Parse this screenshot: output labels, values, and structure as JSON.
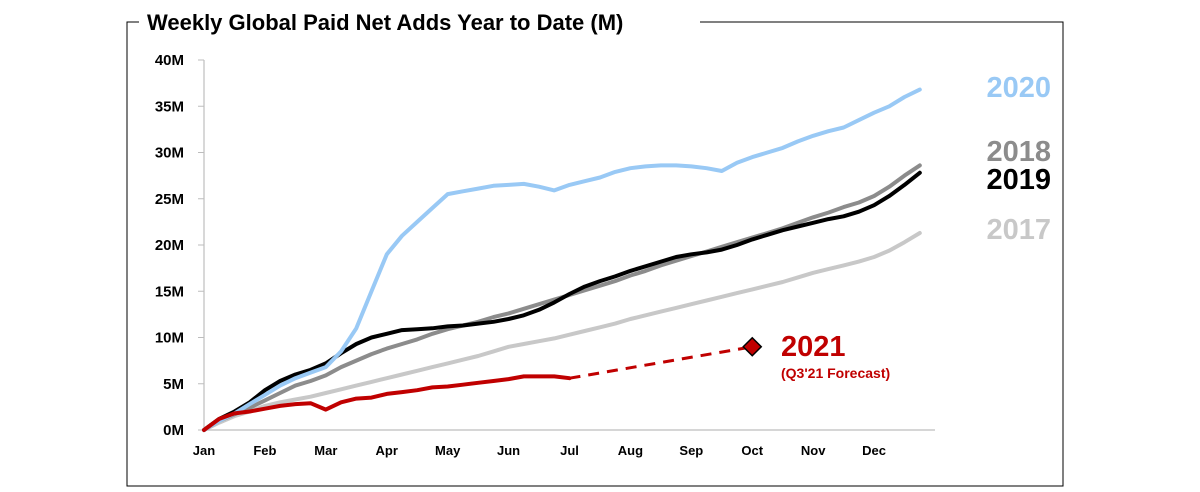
{
  "chart_data": {
    "type": "line",
    "title": "Weekly Global Paid Net Adds Year to Date (M)",
    "xlabel": "",
    "ylabel": "",
    "x_ticks": [
      "Jan",
      "Feb",
      "Mar",
      "Apr",
      "May",
      "Jun",
      "Jul",
      "Aug",
      "Sep",
      "Oct",
      "Nov",
      "Dec"
    ],
    "y_ticks": [
      "0M",
      "5M",
      "10M",
      "15M",
      "20M",
      "25M",
      "30M",
      "35M",
      "40M"
    ],
    "xlim": [
      0,
      12
    ],
    "ylim": [
      0,
      40
    ],
    "grid": false,
    "legend": "inline labels at line ends",
    "series": [
      {
        "name": "2017",
        "color": "#c8c8c8",
        "x": [
          0,
          0.25,
          0.5,
          0.75,
          1,
          1.25,
          1.5,
          1.75,
          2,
          2.25,
          2.5,
          2.75,
          3,
          3.25,
          3.5,
          3.75,
          4,
          4.25,
          4.5,
          4.75,
          5,
          5.25,
          5.5,
          5.75,
          6,
          6.25,
          6.5,
          6.75,
          7,
          7.25,
          7.5,
          7.75,
          8,
          8.25,
          8.5,
          8.75,
          9,
          9.25,
          9.5,
          9.75,
          10,
          10.25,
          10.5,
          10.75,
          11,
          11.25,
          11.5,
          11.75
        ],
        "y": [
          0,
          0.8,
          1.5,
          2.0,
          2.6,
          3.0,
          3.3,
          3.6,
          4.0,
          4.4,
          4.8,
          5.2,
          5.6,
          6.0,
          6.4,
          6.8,
          7.2,
          7.6,
          8.0,
          8.5,
          9.0,
          9.3,
          9.6,
          9.9,
          10.3,
          10.7,
          11.1,
          11.5,
          12.0,
          12.4,
          12.8,
          13.2,
          13.6,
          14.0,
          14.4,
          14.8,
          15.2,
          15.6,
          16.0,
          16.5,
          17.0,
          17.4,
          17.8,
          18.2,
          18.7,
          19.4,
          20.3,
          21.3
        ]
      },
      {
        "name": "2018",
        "color": "#8c8c8c",
        "x": [
          0,
          0.25,
          0.5,
          0.75,
          1,
          1.25,
          1.5,
          1.75,
          2,
          2.25,
          2.5,
          2.75,
          3,
          3.25,
          3.5,
          3.75,
          4,
          4.25,
          4.5,
          4.75,
          5,
          5.25,
          5.5,
          5.75,
          6,
          6.25,
          6.5,
          6.75,
          7,
          7.25,
          7.5,
          7.75,
          8,
          8.25,
          8.5,
          8.75,
          9,
          9.25,
          9.5,
          9.75,
          10,
          10.25,
          10.5,
          10.75,
          11,
          11.25,
          11.5,
          11.75
        ],
        "y": [
          0,
          1.0,
          1.7,
          2.4,
          3.2,
          4.0,
          4.8,
          5.3,
          5.9,
          6.8,
          7.5,
          8.2,
          8.8,
          9.3,
          9.8,
          10.4,
          10.9,
          11.3,
          11.7,
          12.2,
          12.6,
          13.1,
          13.6,
          14.1,
          14.6,
          15.1,
          15.6,
          16.1,
          16.7,
          17.2,
          17.8,
          18.3,
          18.8,
          19.3,
          19.8,
          20.3,
          20.8,
          21.3,
          21.8,
          22.4,
          23.0,
          23.5,
          24.1,
          24.6,
          25.3,
          26.3,
          27.5,
          28.6
        ]
      },
      {
        "name": "2019",
        "color": "#000000",
        "x": [
          0,
          0.25,
          0.5,
          0.75,
          1,
          1.25,
          1.5,
          1.75,
          2,
          2.25,
          2.5,
          2.75,
          3,
          3.25,
          3.5,
          3.75,
          4,
          4.25,
          4.5,
          4.75,
          5,
          5.25,
          5.5,
          5.75,
          6,
          6.25,
          6.5,
          6.75,
          7,
          7.25,
          7.5,
          7.75,
          8,
          8.25,
          8.5,
          8.75,
          9,
          9.25,
          9.5,
          9.75,
          10,
          10.25,
          10.5,
          10.75,
          11,
          11.25,
          11.5,
          11.75
        ],
        "y": [
          0,
          1.2,
          2.0,
          3.0,
          4.3,
          5.3,
          6.0,
          6.5,
          7.2,
          8.3,
          9.3,
          10.0,
          10.4,
          10.8,
          10.9,
          11.0,
          11.2,
          11.3,
          11.5,
          11.7,
          12.0,
          12.4,
          13.0,
          13.8,
          14.7,
          15.5,
          16.1,
          16.6,
          17.2,
          17.7,
          18.2,
          18.7,
          19.0,
          19.2,
          19.5,
          20.0,
          20.6,
          21.1,
          21.6,
          22.0,
          22.4,
          22.8,
          23.1,
          23.6,
          24.3,
          25.3,
          26.5,
          27.8
        ]
      },
      {
        "name": "2020",
        "color": "#99c9f5",
        "x": [
          0,
          0.25,
          0.5,
          0.75,
          1,
          1.25,
          1.5,
          1.75,
          2,
          2.25,
          2.5,
          2.75,
          3,
          3.25,
          3.5,
          3.75,
          4,
          4.25,
          4.5,
          4.75,
          5,
          5.25,
          5.5,
          5.75,
          6,
          6.25,
          6.5,
          6.75,
          7,
          7.25,
          7.5,
          7.75,
          8,
          8.25,
          8.5,
          8.75,
          9,
          9.25,
          9.5,
          9.75,
          10,
          10.25,
          10.5,
          10.75,
          11,
          11.25,
          11.5,
          11.75
        ],
        "y": [
          0,
          1.0,
          1.8,
          2.8,
          3.8,
          4.8,
          5.6,
          6.2,
          6.8,
          8.5,
          11.0,
          15.0,
          19.0,
          21.0,
          22.5,
          24.0,
          25.5,
          25.8,
          26.1,
          26.4,
          26.5,
          26.6,
          26.3,
          25.9,
          26.5,
          26.9,
          27.3,
          27.9,
          28.3,
          28.5,
          28.6,
          28.6,
          28.5,
          28.3,
          28.0,
          28.9,
          29.5,
          30.0,
          30.5,
          31.2,
          31.8,
          32.3,
          32.7,
          33.5,
          34.3,
          35.0,
          36.0,
          36.8
        ]
      },
      {
        "name": "2021",
        "color": "#c00000",
        "x": [
          0,
          0.25,
          0.5,
          0.75,
          1,
          1.25,
          1.5,
          1.75,
          2,
          2.25,
          2.5,
          2.75,
          3,
          3.25,
          3.5,
          3.75,
          4,
          4.25,
          4.5,
          4.75,
          5,
          5.25,
          5.5,
          5.75,
          6
        ],
        "y": [
          0,
          1.2,
          1.8,
          2.0,
          2.3,
          2.6,
          2.8,
          2.9,
          2.2,
          3.0,
          3.4,
          3.5,
          3.9,
          4.1,
          4.3,
          4.6,
          4.7,
          4.9,
          5.1,
          5.3,
          5.5,
          5.8,
          5.8,
          5.8,
          5.6
        ]
      },
      {
        "name": "2021",
        "color": "#c00000",
        "style": "dashed",
        "x": [
          6,
          9
        ],
        "y": [
          5.6,
          9.0
        ]
      }
    ],
    "annotations": {
      "forecast_point": {
        "x": 9,
        "y": 9.0,
        "marker": "diamond",
        "color": "#c00000"
      },
      "forecast_label": "2021",
      "forecast_sublabel": "(Q3'21 Forecast)"
    }
  }
}
